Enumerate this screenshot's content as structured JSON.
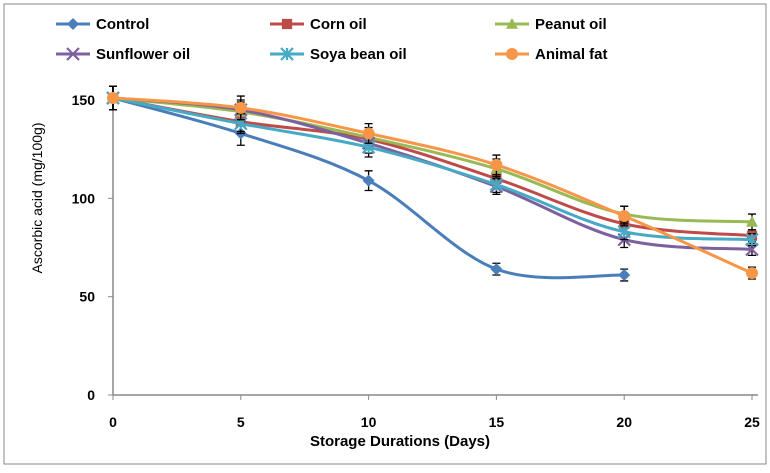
{
  "chart_data": {
    "type": "line",
    "title": "",
    "xlabel": "Storage Durations (Days)",
    "ylabel": "Ascorbic acid (mg/100g)",
    "xlim": [
      0,
      25
    ],
    "ylim": [
      0,
      150
    ],
    "xticks": [
      0,
      5,
      10,
      15,
      20,
      25
    ],
    "yticks": [
      0,
      50,
      100,
      150
    ],
    "grid": false,
    "legend_position": "top",
    "smooth": true,
    "series": [
      {
        "name": "Control",
        "color": "#4a7ebb",
        "marker": "diamond",
        "x": [
          0,
          5,
          10,
          15,
          20
        ],
        "y": [
          151,
          133,
          109,
          64,
          61
        ],
        "err": [
          6,
          6,
          5,
          3,
          3
        ]
      },
      {
        "name": "Corn oil",
        "color": "#be4b48",
        "marker": "square",
        "x": [
          0,
          5,
          10,
          15,
          20,
          25
        ],
        "y": [
          151,
          139,
          130,
          110,
          87,
          81
        ],
        "err": [
          6,
          5,
          5,
          4,
          4,
          3
        ]
      },
      {
        "name": "Peanut oil",
        "color": "#98b954",
        "marker": "triangle",
        "x": [
          0,
          5,
          10,
          15,
          20,
          25
        ],
        "y": [
          151,
          144,
          131,
          115,
          92,
          88
        ],
        "err": [
          6,
          5,
          5,
          5,
          4,
          4
        ]
      },
      {
        "name": "Sunflower oil",
        "color": "#7d60a0",
        "marker": "x",
        "x": [
          0,
          5,
          10,
          15,
          20,
          25
        ],
        "y": [
          151,
          145,
          128,
          106,
          79,
          74
        ],
        "err": [
          6,
          5,
          5,
          4,
          4,
          3
        ]
      },
      {
        "name": "Soya bean oil",
        "color": "#46aac5",
        "marker": "asterisk",
        "x": [
          0,
          5,
          10,
          15,
          20,
          25
        ],
        "y": [
          151,
          138,
          126,
          107,
          83,
          79
        ],
        "err": [
          6,
          5,
          5,
          4,
          4,
          3
        ]
      },
      {
        "name": "Animal fat",
        "color": "#f79646",
        "marker": "circle",
        "x": [
          0,
          5,
          10,
          15,
          20,
          25
        ],
        "y": [
          151,
          146,
          133,
          117,
          91,
          62
        ],
        "err": [
          6,
          6,
          5,
          5,
          5,
          3
        ]
      }
    ]
  }
}
